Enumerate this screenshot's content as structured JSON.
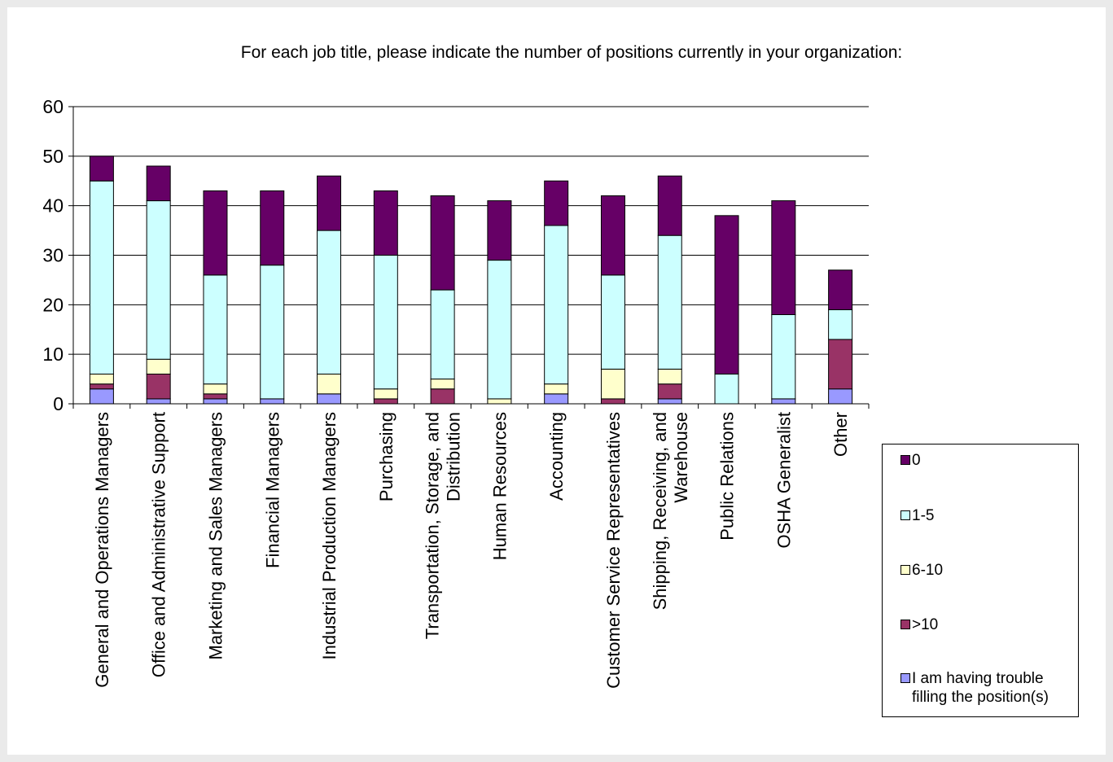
{
  "chart_data": {
    "type": "bar",
    "stacked": true,
    "title": "For each job title, please indicate the number of positions currently in your organization:",
    "ylim": [
      0,
      60
    ],
    "yticks": [
      0,
      10,
      20,
      30,
      40,
      50,
      60
    ],
    "grid": true,
    "legend_position": "bottom-right",
    "categories": [
      [
        "General and Operations Managers"
      ],
      [
        "Office and Administrative Support"
      ],
      [
        "Marketing and Sales Managers"
      ],
      [
        "Financial Managers"
      ],
      [
        "Industrial Production Managers"
      ],
      [
        "Purchasing"
      ],
      [
        "Transportation, Storage, and",
        "Distribution"
      ],
      [
        "Human Resources"
      ],
      [
        "Accounting"
      ],
      [
        "Customer Service Representatives"
      ],
      [
        "Shipping, Receiving, and",
        "Warehouse"
      ],
      [
        "Public Relations"
      ],
      [
        "OSHA Generalist"
      ],
      [
        "Other"
      ]
    ],
    "series": [
      {
        "name": "I am having trouble filling the position(s)",
        "color": "#9999ff",
        "values": [
          3,
          1,
          1,
          1,
          2,
          0,
          0,
          0,
          2,
          0,
          1,
          0,
          1,
          3
        ]
      },
      {
        "name": ">10",
        "color": "#993366",
        "values": [
          1,
          5,
          1,
          0,
          0,
          1,
          3,
          0,
          0,
          1,
          3,
          0,
          0,
          10
        ]
      },
      {
        "name": "6-10",
        "color": "#ffffcc",
        "values": [
          2,
          3,
          2,
          0,
          4,
          2,
          2,
          1,
          2,
          6,
          3,
          0,
          0,
          0
        ]
      },
      {
        "name": "1-5",
        "color": "#ccffff",
        "values": [
          39,
          32,
          22,
          27,
          29,
          27,
          18,
          28,
          32,
          19,
          27,
          6,
          17,
          6
        ]
      },
      {
        "name": "0",
        "color": "#660066",
        "values": [
          5,
          7,
          17,
          15,
          11,
          13,
          19,
          12,
          9,
          16,
          12,
          32,
          23,
          8
        ]
      }
    ],
    "legend": [
      {
        "label": "0",
        "color": "#660066"
      },
      {
        "label": "1-5",
        "color": "#ccffff"
      },
      {
        "label": "6-10",
        "color": "#ffffcc"
      },
      {
        "label": ">10",
        "color": "#993366"
      },
      {
        "label": "I am having trouble filling the position(s)",
        "color": "#9999ff"
      }
    ]
  }
}
